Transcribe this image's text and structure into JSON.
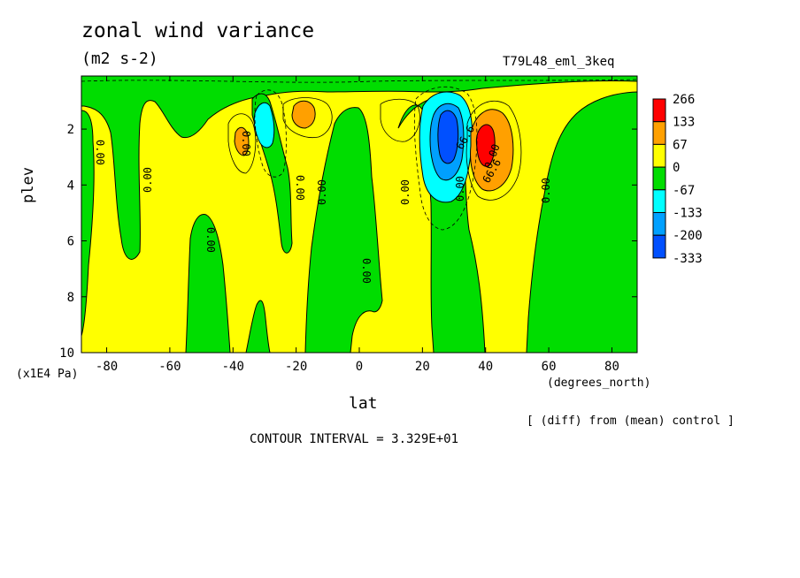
{
  "chart_data": {
    "type": "heatmap",
    "title": "zonal wind variance",
    "subtitle": "(m2 s-2)",
    "run_label": "T79L48_eml_3keq",
    "xlabel": "lat",
    "ylabel": "plev",
    "x_unit": "(degrees_north)",
    "y_unit": "(x1E4 Pa)",
    "x_ticks": [
      "-80",
      "-60",
      "-40",
      "-20",
      "0",
      "20",
      "40",
      "60",
      "80"
    ],
    "x_tick_values": [
      -80,
      -60,
      -40,
      -20,
      0,
      20,
      40,
      60,
      80
    ],
    "y_ticks": [
      "2",
      "4",
      "6",
      "8",
      "10"
    ],
    "y_tick_values": [
      2,
      4,
      6,
      8,
      10
    ],
    "xlim": [
      -88,
      88
    ],
    "ylim": [
      10,
      0.1
    ],
    "contour_interval_text": "CONTOUR INTERVAL = 3.329E+01",
    "diff_note": "[ (diff) from (mean) control ]",
    "contour_labels": [
      "0.00",
      "0.00",
      "0.00",
      "0.00",
      "0.00",
      "0.00",
      "0.00",
      "0.00",
      "0.00",
      "0.00",
      "0.00",
      "66.6",
      "66.6"
    ],
    "legend": {
      "boundaries": [
        "266",
        "133",
        "67",
        "0",
        "-67",
        "-133",
        "-200",
        "-333"
      ],
      "colors": [
        "#ff0000",
        "#ffa000",
        "#ffff00",
        "#00dd00",
        "#00ffff",
        "#00a0ff",
        "#0050ff"
      ]
    },
    "features": [
      {
        "name": "positive max",
        "lat": 40,
        "plev": 2.5,
        "value": 266
      },
      {
        "name": "negative min",
        "lat": 28,
        "plev": 2.0,
        "value": -333
      },
      {
        "name": "weak positive",
        "lat": -18,
        "plev": 1.3,
        "value": 133
      },
      {
        "name": "weak positive",
        "lat": -37,
        "plev": 2.4,
        "value": 67
      },
      {
        "name": "weak negative",
        "lat": -30,
        "plev": 1.5,
        "value": -67
      }
    ]
  }
}
